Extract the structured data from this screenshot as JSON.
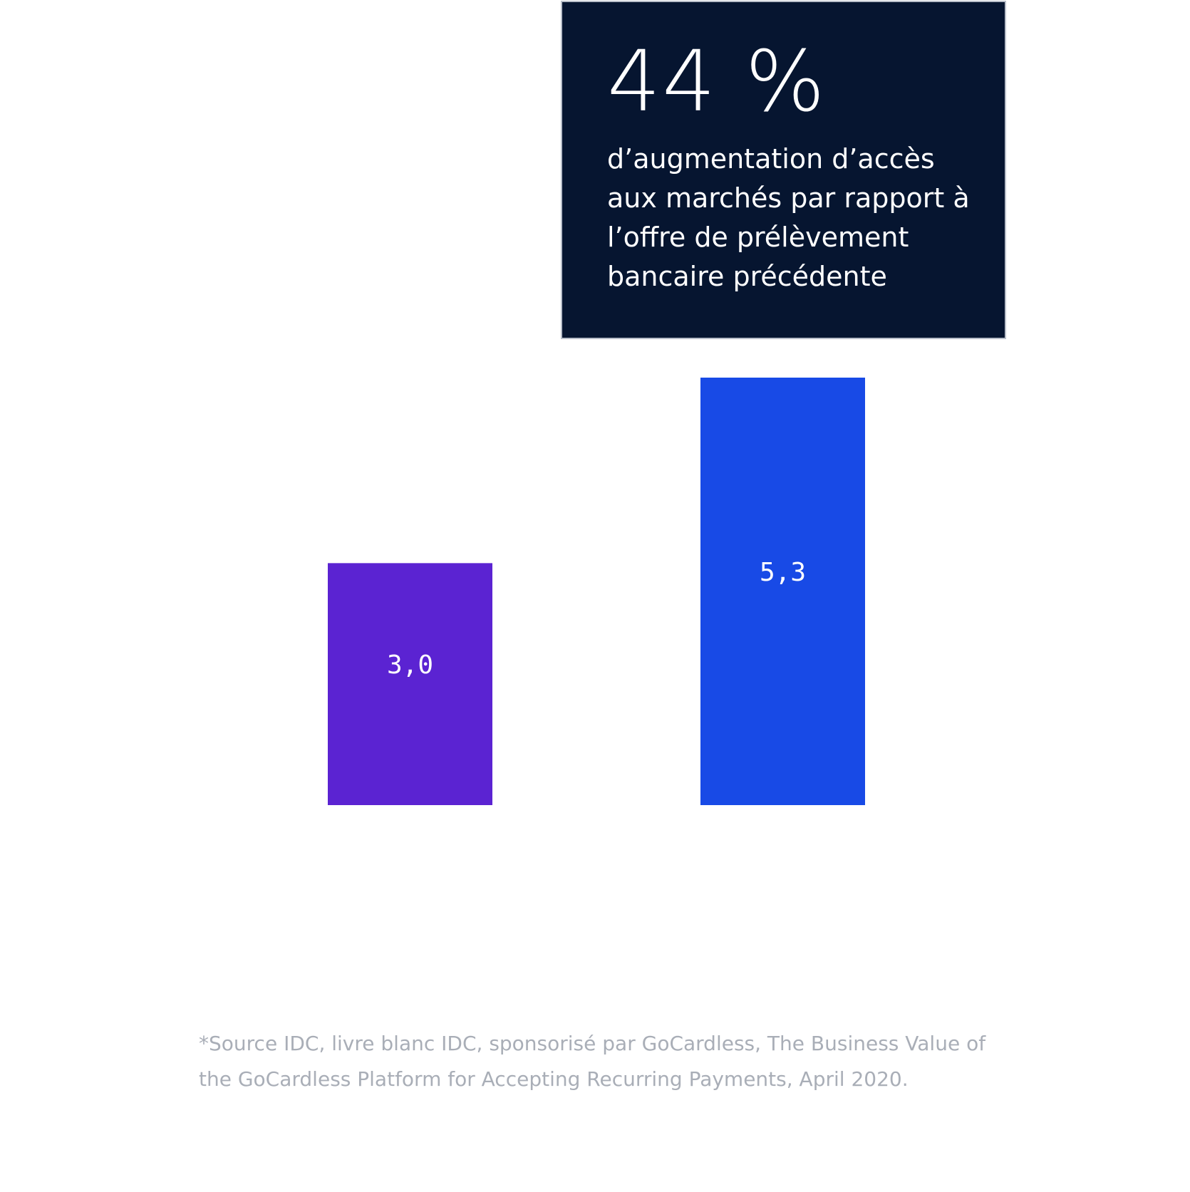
{
  "callout": {
    "value": "44 %",
    "lines": [
      "d’augmentation d’accès",
      "aux marchés par rapport à",
      "l’offre de prélèvement",
      "bancaire précédente"
    ],
    "background": "#061530"
  },
  "chart_data": {
    "type": "bar",
    "categories": [
      "",
      ""
    ],
    "values": [
      3.0,
      5.3
    ],
    "value_labels": [
      "3,0",
      "5,3"
    ],
    "colors": [
      "#5b23d2",
      "#184ae6"
    ],
    "title": "",
    "xlabel": "",
    "ylabel": "",
    "ylim": [
      0,
      5.3
    ],
    "grid": false,
    "axes_visible": false
  },
  "footnote": {
    "lines": [
      "*Source IDC, livre blanc IDC, sponsorisé par GoCardless, The Business Value of",
      "the GoCardless Platform for Accepting Recurring Payments, April 2020."
    ]
  }
}
